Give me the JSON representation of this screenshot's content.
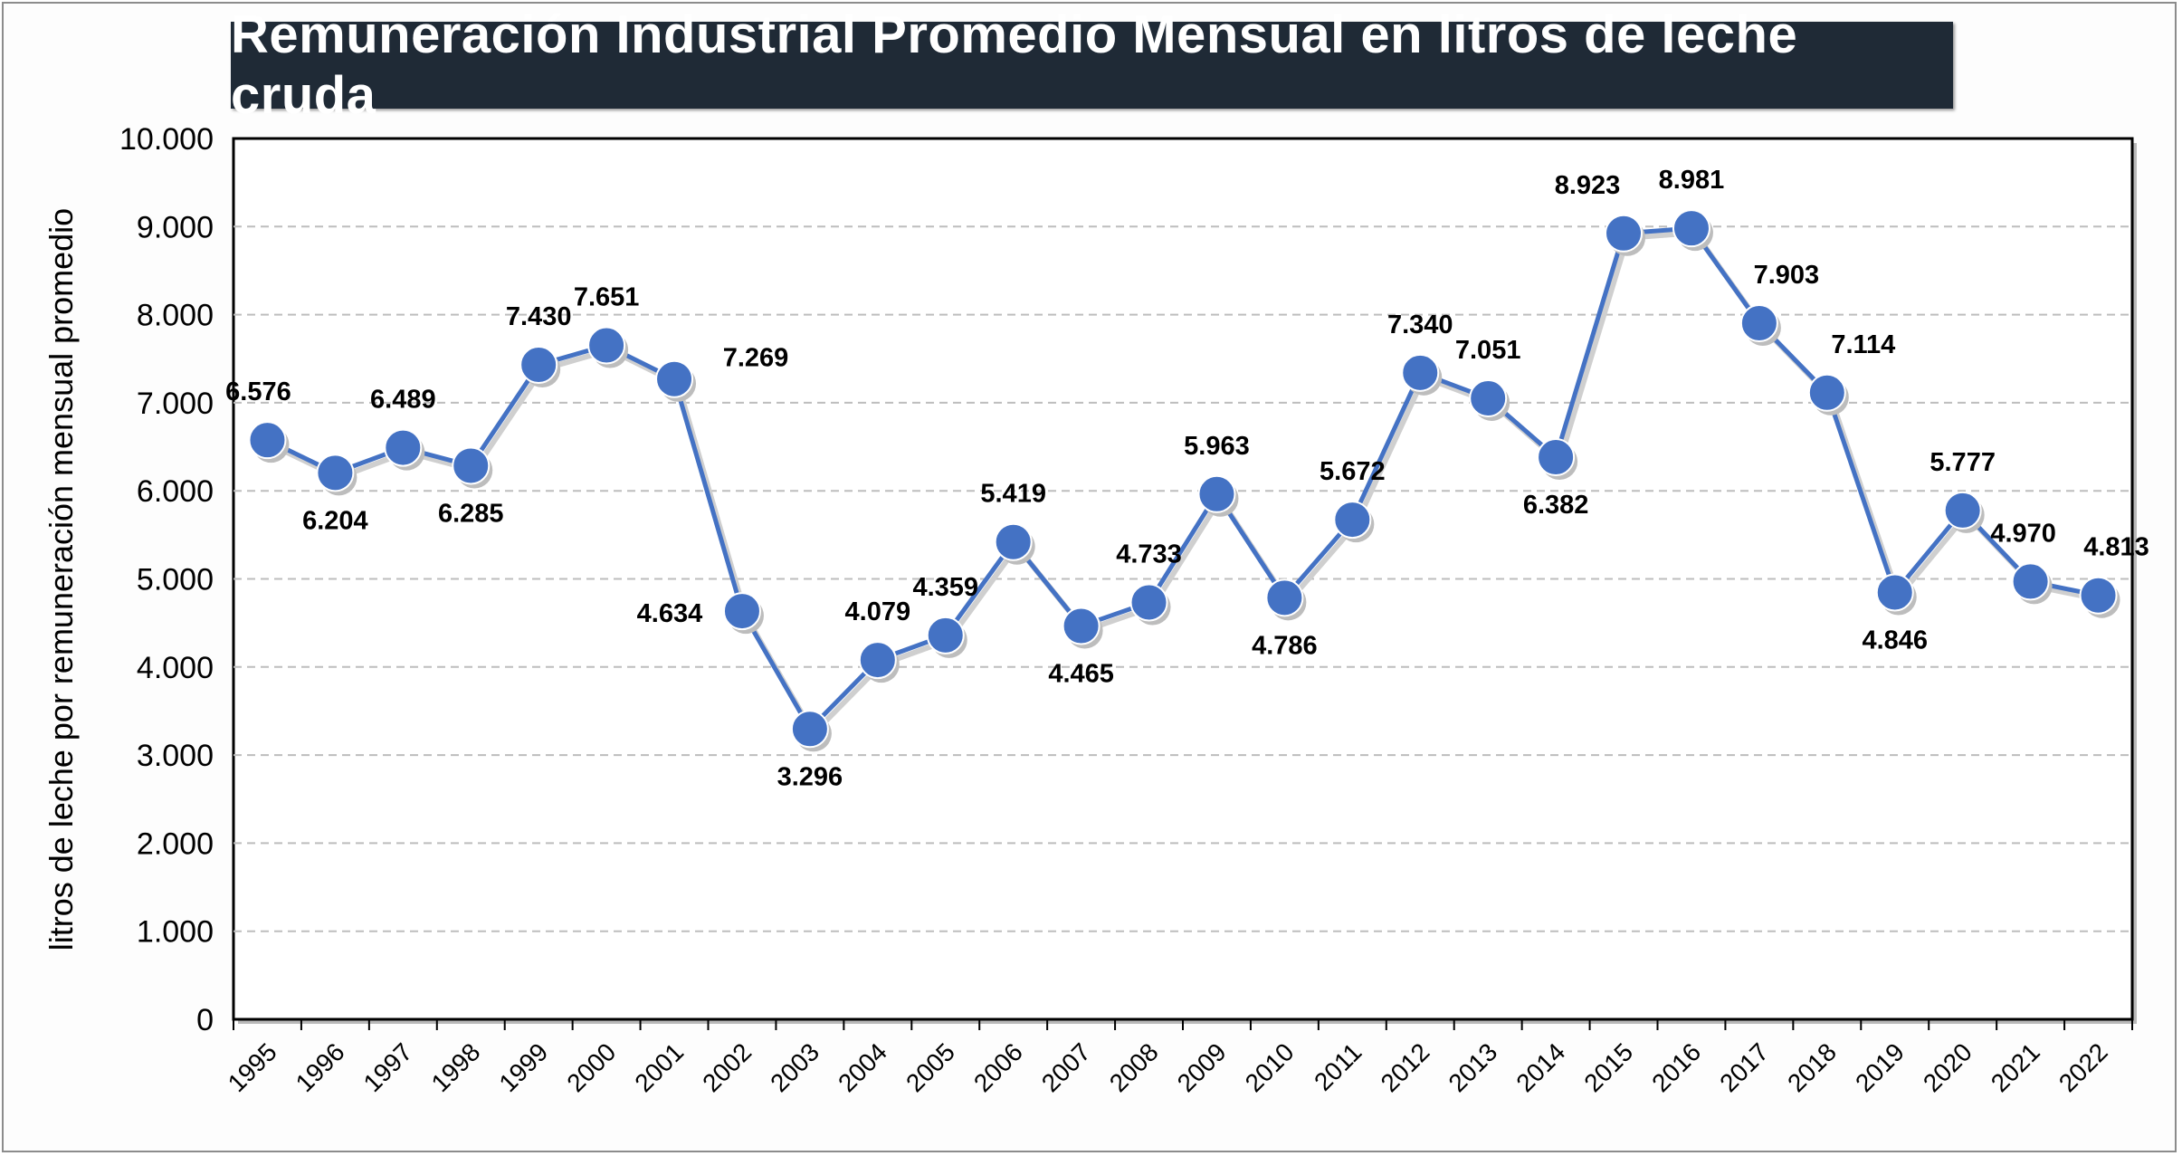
{
  "chart_data": {
    "type": "line",
    "title": "Remuneración Industrial Promedio Mensual en litros de leche cruda",
    "xlabel": "",
    "ylabel": "litros de leche por remuneración mensual promedio",
    "ylim": [
      0,
      10000
    ],
    "yticks": [
      "0",
      "1.000",
      "2.000",
      "3.000",
      "4.000",
      "5.000",
      "6.000",
      "7.000",
      "8.000",
      "9.000",
      "10.000"
    ],
    "grid": true,
    "legend": "none",
    "colors": {
      "line": "#4472c4",
      "marker": "#4472c4"
    },
    "categories": [
      "1995",
      "1996",
      "1997",
      "1998",
      "1999",
      "2000",
      "2001",
      "2002",
      "2003",
      "2004",
      "2005",
      "2006",
      "2007",
      "2008",
      "2009",
      "2010",
      "2011",
      "2012",
      "2013",
      "2014",
      "2015",
      "2016",
      "2017",
      "2018",
      "2019",
      "2020",
      "2021",
      "2022"
    ],
    "values": [
      6576,
      6204,
      6489,
      6285,
      7430,
      7651,
      7269,
      4634,
      3296,
      4079,
      4359,
      5419,
      4465,
      4733,
      5963,
      4786,
      5672,
      7340,
      7051,
      6382,
      8923,
      8981,
      7903,
      7114,
      4846,
      5777,
      4970,
      4813
    ],
    "data_labels": [
      "6.576",
      "6.204",
      "6.489",
      "6.285",
      "7.430",
      "7.651",
      "7.269",
      "4.634",
      "3.296",
      "4.079",
      "4.359",
      "5.419",
      "4.465",
      "4.733",
      "5.963",
      "4.786",
      "5.672",
      "7.340",
      "7.051",
      "6.382",
      "8.923",
      "8.981",
      "7.903",
      "7.114",
      "4.846",
      "5.777",
      "4.970",
      "4.813"
    ]
  }
}
